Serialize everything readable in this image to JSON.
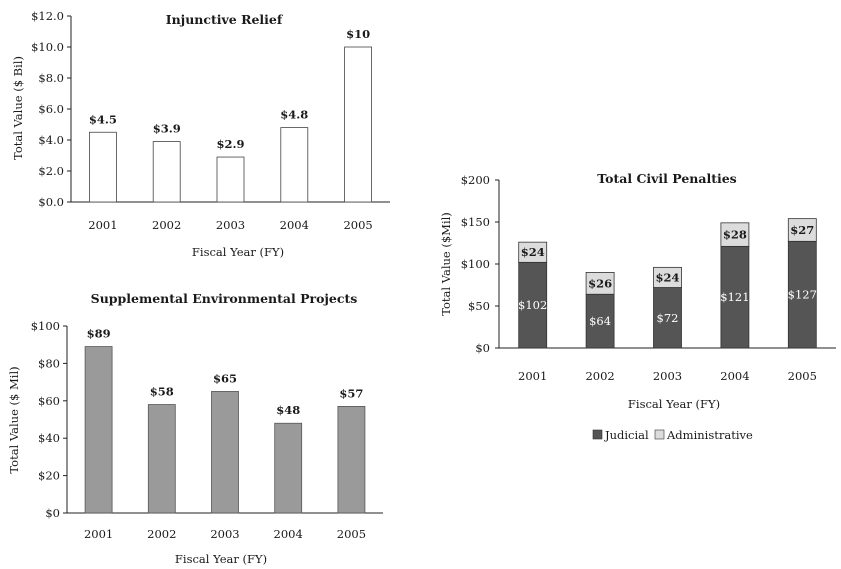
{
  "chart_data": [
    {
      "type": "bar",
      "title": "Injunctive Relief",
      "xlabel": "Fiscal Year (FY)",
      "ylabel": "Total Value ($ Bil)",
      "categories": [
        "2001",
        "2002",
        "2003",
        "2004",
        "2005"
      ],
      "values": [
        4.5,
        3.9,
        2.9,
        4.8,
        10
      ],
      "data_labels": [
        "$4.5",
        "$3.9",
        "$2.9",
        "$4.8",
        "$10"
      ],
      "ylim": [
        0,
        12
      ],
      "yticks": [
        "$0.0",
        "$2.0",
        "$4.0",
        "$6.0",
        "$8.0",
        "$10.0",
        "$12.0"
      ],
      "bar_color": "#ffffff",
      "grid": false
    },
    {
      "type": "bar",
      "title": "Supplemental Environmental Projects",
      "xlabel": "Fiscal Year (FY)",
      "ylabel": "Total Value ($ Mil)",
      "categories": [
        "2001",
        "2002",
        "2003",
        "2004",
        "2005"
      ],
      "values": [
        89,
        58,
        65,
        48,
        57
      ],
      "data_labels": [
        "$89",
        "$58",
        "$65",
        "$48",
        "$57"
      ],
      "ylim": [
        0,
        100
      ],
      "yticks": [
        "$0",
        "$20",
        "$40",
        "$60",
        "$80",
        "$100"
      ],
      "bar_color": "#9a9a9a",
      "grid": false
    },
    {
      "type": "bar",
      "stacked": true,
      "title": "Total Civil Penalties",
      "xlabel": "Fiscal Year (FY)",
      "ylabel": "Total Value ($Mil)",
      "categories": [
        "2001",
        "2002",
        "2003",
        "2004",
        "2005"
      ],
      "series": [
        {
          "name": "Judicial",
          "values": [
            102,
            64,
            72,
            121,
            127
          ],
          "data_labels": [
            "$102",
            "$64",
            "$72",
            "$121",
            "$127"
          ],
          "color": "#555555"
        },
        {
          "name": "Administrative",
          "values": [
            24,
            26,
            24,
            28,
            27
          ],
          "data_labels": [
            "$24",
            "$26",
            "$24",
            "$28",
            "$27"
          ],
          "color": "#dcdcdc"
        }
      ],
      "ylim": [
        0,
        200
      ],
      "yticks": [
        "$0",
        "$50",
        "$100",
        "$150",
        "$200"
      ],
      "legend": "bottom",
      "grid": false
    }
  ]
}
